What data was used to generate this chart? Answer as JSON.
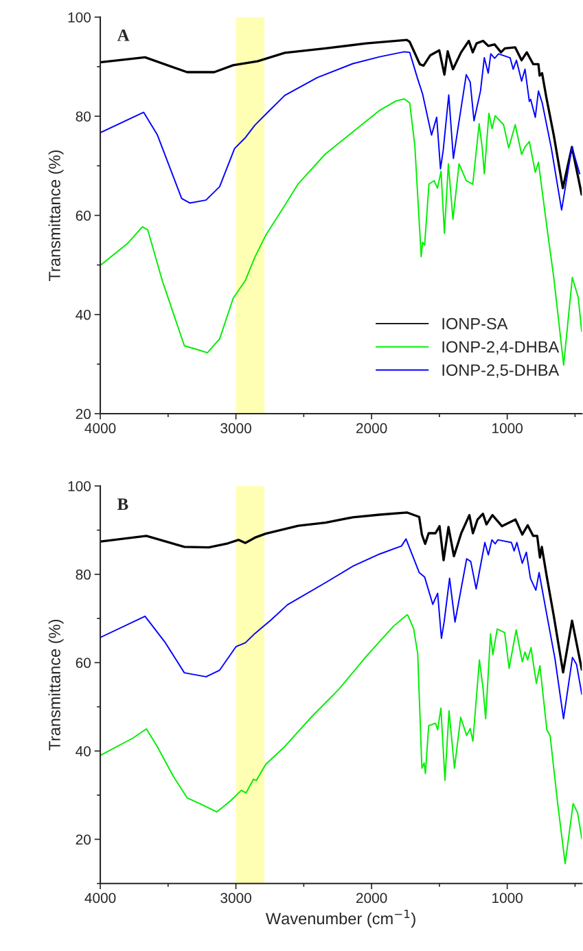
{
  "chart_data": [
    {
      "type": "line",
      "ylabel": "Transmittance (%)",
      "annotations": [
        "A"
      ],
      "xlim": [
        4000,
        450
      ],
      "xticks": [
        4000,
        3000,
        2000,
        1000
      ],
      "ylim": [
        20,
        100
      ],
      "yticks": [
        20,
        40,
        60,
        80,
        100
      ],
      "grid": false,
      "legend": "bottom right",
      "line_style": "solid",
      "marker": "none",
      "bands": [
        {
          "axis": "x",
          "from": 3000,
          "to": 2790,
          "color": "#ffffb3"
        }
      ],
      "series": [
        {
          "name": "IONP-SA",
          "color": "#000000",
          "x": [
            4000,
            3670,
            3360,
            3160,
            3020,
            2840,
            2640,
            2340,
            2040,
            1740,
            1719,
            1644,
            1617,
            1567,
            1501,
            1463,
            1439,
            1400,
            1340,
            1283,
            1254,
            1226,
            1178,
            1140,
            1093,
            1046,
            1017,
            941,
            894,
            856,
            808,
            770,
            761,
            743,
            713,
            657,
            590,
            523,
            451
          ],
          "values": [
            90.9,
            91.9,
            88.9,
            88.9,
            90.3,
            91.1,
            92.8,
            93.7,
            94.7,
            95.4,
            95.0,
            90.5,
            90.2,
            92.3,
            93.3,
            88.4,
            93.1,
            89.5,
            92.9,
            95.2,
            92.9,
            94.7,
            95.2,
            94.2,
            94.5,
            92.9,
            93.7,
            93.9,
            91.3,
            92.9,
            90.5,
            90.5,
            88.2,
            88.7,
            84.0,
            76.2,
            65.5,
            73.8,
            64.2
          ]
        },
        {
          "name": "IONP-2,4-DHBA",
          "color": "#00ee00",
          "x": [
            4000,
            3800,
            3690,
            3650,
            3540,
            3380,
            3280,
            3210,
            3120,
            3020,
            2930,
            2860,
            2780,
            2640,
            2540,
            2340,
            2140,
            1940,
            1820,
            1758,
            1719,
            1681,
            1634,
            1624,
            1609,
            1577,
            1539,
            1514,
            1488,
            1463,
            1434,
            1400,
            1355,
            1302,
            1254,
            1207,
            1184,
            1169,
            1135,
            1112,
            1089,
            1027,
            989,
            941,
            894,
            869,
            837,
            793,
            770,
            704,
            657,
            584,
            520,
            476,
            451
          ],
          "values": [
            49.9,
            54.3,
            57.7,
            57.1,
            46.6,
            33.7,
            32.9,
            32.3,
            35.1,
            43.3,
            46.9,
            51.6,
            56.0,
            62.0,
            66.4,
            72.4,
            76.8,
            81.2,
            83.1,
            83.5,
            82.7,
            74.0,
            51.7,
            54.6,
            54.0,
            66.3,
            67.0,
            65.5,
            68.9,
            56.4,
            70.4,
            59.2,
            70.4,
            67.0,
            66.3,
            78.5,
            73.6,
            68.4,
            80.6,
            77.5,
            80.1,
            78.3,
            73.6,
            78.3,
            72.3,
            73.8,
            74.9,
            68.7,
            70.7,
            56.9,
            47.5,
            29.8,
            47.5,
            43.4,
            36.6
          ]
        },
        {
          "name": "IONP-2,5-DHBA",
          "color": "#0000ff",
          "x": [
            4000,
            3680,
            3580,
            3400,
            3340,
            3220,
            3120,
            3010,
            2930,
            2860,
            2780,
            2640,
            2400,
            2140,
            1940,
            1760,
            1719,
            1662,
            1624,
            1558,
            1520,
            1492,
            1472,
            1431,
            1397,
            1359,
            1302,
            1273,
            1245,
            1197,
            1169,
            1140,
            1121,
            1093,
            1064,
            979,
            956,
            932,
            894,
            869,
            837,
            827,
            793,
            770,
            742,
            675,
            599,
            523,
            466
          ],
          "values": [
            76.7,
            80.8,
            76.3,
            63.4,
            62.5,
            63.1,
            65.8,
            73.5,
            75.7,
            78.2,
            80.4,
            84.2,
            87.8,
            90.6,
            92.0,
            93.0,
            92.9,
            87.7,
            84.5,
            76.2,
            79.8,
            69.4,
            73.1,
            84.3,
            71.5,
            78.3,
            88.4,
            86.9,
            79.1,
            85.1,
            91.8,
            88.7,
            92.6,
            91.7,
            92.6,
            91.8,
            89.5,
            91.3,
            87.1,
            89.5,
            83.0,
            83.4,
            79.8,
            85.1,
            82.7,
            73.6,
            61.1,
            73.8,
            68.4
          ]
        }
      ]
    },
    {
      "type": "line",
      "xlabel": "Wavenumber (cm$^{−1}$)",
      "ylabel": "Transmittance (%)",
      "annotations": [
        "B"
      ],
      "xlim": [
        4000,
        450
      ],
      "xticks": [
        4000,
        3000,
        2000,
        1000
      ],
      "ylim": [
        10,
        100
      ],
      "yticks": [
        20,
        40,
        60,
        80,
        100
      ],
      "grid": false,
      "line_style": "solid",
      "marker": "none",
      "bands": [
        {
          "axis": "x",
          "from": 3000,
          "to": 2790,
          "color": "#ffffb3"
        }
      ],
      "series": [
        {
          "color": "#000000",
          "x": [
            4000,
            3660,
            3380,
            3200,
            3060,
            2980,
            2930,
            2860,
            2780,
            2540,
            2340,
            2140,
            1940,
            1740,
            1649,
            1629,
            1605,
            1579,
            1529,
            1499,
            1469,
            1433,
            1393,
            1339,
            1279,
            1253,
            1219,
            1179,
            1153,
            1109,
            1039,
            939,
            889,
            849,
            809,
            779,
            759,
            745,
            708,
            658,
            588,
            522,
            450
          ],
          "values": [
            87.4,
            88.7,
            86.2,
            86.1,
            87.0,
            87.8,
            87.1,
            88.3,
            89.2,
            91.0,
            91.7,
            92.9,
            93.5,
            94.0,
            93.0,
            89.0,
            86.9,
            89.3,
            89.3,
            90.9,
            83.2,
            90.7,
            84.1,
            89.3,
            93.4,
            89.3,
            92.4,
            93.7,
            91.3,
            93.4,
            90.9,
            92.4,
            89.0,
            91.1,
            88.7,
            88.7,
            83.8,
            86.2,
            79.4,
            70.8,
            57.8,
            69.5,
            58.4
          ]
        },
        {
          "color": "#00ee00",
          "x": [
            4000,
            3760,
            3660,
            3580,
            3460,
            3360,
            3260,
            3140,
            3040,
            2960,
            2926,
            2870,
            2850,
            2780,
            2640,
            2440,
            2240,
            2040,
            1840,
            1740,
            1734,
            1690,
            1660,
            1629,
            1613,
            1603,
            1579,
            1529,
            1513,
            1489,
            1459,
            1429,
            1389,
            1343,
            1299,
            1273,
            1253,
            1205,
            1179,
            1159,
            1123,
            1106,
            1074,
            1019,
            986,
            934,
            889,
            869,
            849,
            825,
            785,
            759,
            708,
            684,
            628,
            573,
            514,
            481,
            450
          ],
          "values": [
            39.0,
            42.9,
            45.0,
            41.0,
            34.2,
            29.4,
            28.0,
            26.2,
            28.7,
            31.1,
            30.5,
            33.6,
            33.3,
            37.0,
            41.0,
            47.8,
            54.0,
            61.4,
            68.2,
            70.8,
            70.8,
            67.7,
            62.1,
            36.1,
            37.3,
            34.9,
            45.7,
            46.3,
            44.8,
            49.7,
            33.4,
            49.1,
            36.1,
            47.6,
            43.5,
            45.1,
            42.2,
            60.6,
            54.4,
            47.3,
            66.5,
            61.8,
            67.6,
            66.8,
            58.7,
            67.4,
            60.2,
            62.4,
            60.6,
            63.4,
            55.3,
            59.3,
            44.8,
            43.5,
            28.1,
            14.5,
            28.1,
            26.0,
            20.1
          ]
        },
        {
          "color": "#0000ff",
          "x": [
            4000,
            3670,
            3520,
            3380,
            3220,
            3120,
            3000,
            2930,
            2860,
            2740,
            2620,
            2340,
            2140,
            1940,
            1780,
            1746,
            1649,
            1609,
            1549,
            1513,
            1485,
            1465,
            1425,
            1385,
            1299,
            1269,
            1229,
            1165,
            1139,
            1113,
            1089,
            1069,
            969,
            949,
            929,
            889,
            859,
            829,
            789,
            765,
            708,
            648,
            585,
            519,
            489,
            450
          ],
          "values": [
            65.7,
            70.5,
            64.5,
            57.7,
            56.8,
            58.3,
            63.6,
            64.5,
            66.6,
            69.7,
            73.1,
            78.1,
            81.8,
            84.6,
            86.4,
            88.0,
            80.4,
            79.4,
            73.2,
            75.7,
            65.5,
            69.2,
            79.1,
            69.2,
            83.5,
            82.9,
            76.7,
            87.2,
            84.4,
            87.8,
            86.9,
            87.8,
            87.2,
            85.3,
            87.2,
            82.5,
            85.0,
            79.1,
            76.4,
            80.4,
            70.8,
            60.9,
            47.3,
            61.2,
            59.6,
            52.8
          ]
        }
      ]
    }
  ]
}
